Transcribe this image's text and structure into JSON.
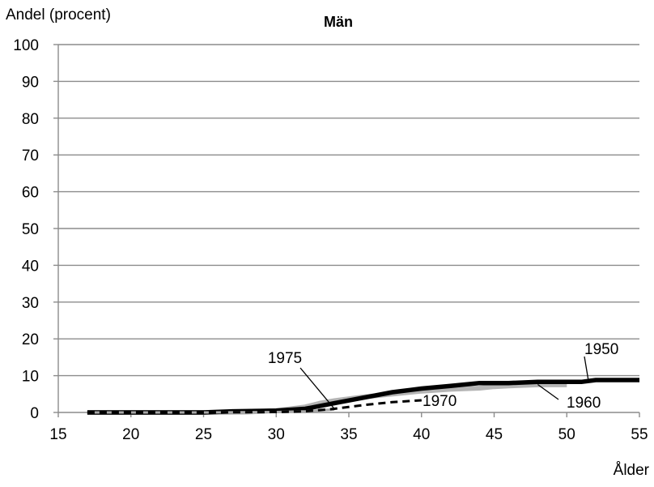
{
  "chart_data": {
    "type": "line",
    "title": "Män",
    "ylabel": "Andel (procent)",
    "xlabel": "Ålder",
    "xlim": [
      15,
      55
    ],
    "ylim": [
      0,
      100
    ],
    "xticks": [
      15,
      20,
      25,
      30,
      35,
      40,
      45,
      50,
      55
    ],
    "yticks": [
      0,
      10,
      20,
      30,
      40,
      50,
      60,
      70,
      80,
      90,
      100
    ],
    "grid": "horizontal",
    "colors": {
      "1950": "#000000",
      "1960": "#b4b4b4",
      "1970": "#000000",
      "1975": "#a8a8a8",
      "grid": "#8c8c8c"
    },
    "series": [
      {
        "name": "1950",
        "style": "solid-thick",
        "x": [
          17,
          20,
          25,
          27,
          30,
          32,
          34,
          36,
          38,
          40,
          42,
          44,
          46,
          48,
          50,
          51,
          52,
          55
        ],
        "y": [
          0,
          0,
          0,
          0.3,
          0.5,
          1,
          2.5,
          4,
          5.5,
          6.5,
          7.2,
          8,
          8,
          8.3,
          8.3,
          8.3,
          8.8,
          8.8
        ]
      },
      {
        "name": "1960",
        "style": "solid-thick-light",
        "x": [
          17,
          20,
          25,
          28,
          30,
          32,
          33,
          34,
          36,
          38,
          40,
          42,
          44,
          45,
          46,
          48,
          50
        ],
        "y": [
          0,
          0,
          0,
          0.1,
          0.5,
          1.5,
          2.5,
          3.2,
          4.2,
          5,
          5.8,
          6.3,
          6.6,
          7,
          7.2,
          7.5,
          7.5
        ]
      },
      {
        "name": "1970",
        "style": "dashed",
        "x": [
          17,
          20,
          25,
          30,
          32,
          34,
          36,
          38,
          40
        ],
        "y": [
          0,
          0,
          0,
          0.1,
          0.3,
          1,
          2,
          2.8,
          3.3
        ]
      },
      {
        "name": "1975",
        "style": "solid-light",
        "x": [
          17,
          20,
          25,
          30,
          32,
          34
        ],
        "y": [
          0,
          0,
          0,
          0.1,
          0.3,
          0.8
        ]
      }
    ],
    "annotations": [
      {
        "text": "1950",
        "series": "1950"
      },
      {
        "text": "1960",
        "series": "1960"
      },
      {
        "text": "1970",
        "series": "1970"
      },
      {
        "text": "1975",
        "series": "1975"
      }
    ]
  }
}
